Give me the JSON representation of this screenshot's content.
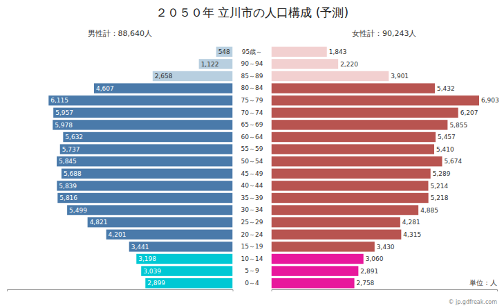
{
  "chart_data": {
    "type": "bar",
    "orientation": "horizontal",
    "title": "２０５０年 立川市の人口構成 (予測)",
    "annotations": [
      "男性計：88,640人",
      "女性計：90,243人",
      "単位：人",
      "© jp.gdfreak.com"
    ],
    "categories": [
      "95歳～",
      "90～94",
      "85～89",
      "80～84",
      "75～79",
      "70～74",
      "65～69",
      "60～64",
      "55～59",
      "50～54",
      "45～49",
      "40～44",
      "35～39",
      "30～34",
      "25～29",
      "20～24",
      "15～19",
      "10～14",
      "5～9",
      "0～4"
    ],
    "series": [
      {
        "values": [
          548,
          1122,
          2658,
          4607,
          6115,
          5957,
          5978,
          5632,
          5737,
          5845,
          5688,
          5839,
          5816,
          5499,
          4821,
          4201,
          3441,
          3198,
          3039,
          2899
        ],
        "value_labels": [
          "548",
          "1,122",
          "2,658",
          "4,607",
          "6,115",
          "5,957",
          "5,978",
          "5,632",
          "5,737",
          "5,845",
          "5,688",
          "5,839",
          "5,816",
          "5,499",
          "4,821",
          "4,201",
          "3,441",
          "3,198",
          "3,039",
          "2,899"
        ],
        "colors": [
          "#b8cfe0",
          "#b8cfe0",
          "#b8cfe0",
          "#4a7aaa",
          "#4a7aaa",
          "#4a7aaa",
          "#4a7aaa",
          "#4a7aaa",
          "#4a7aaa",
          "#4a7aaa",
          "#4a7aaa",
          "#4a7aaa",
          "#4a7aaa",
          "#4a7aaa",
          "#4a7aaa",
          "#4a7aaa",
          "#4a7aaa",
          "#00c8d4",
          "#00c8d4",
          "#00c8d4"
        ]
      },
      {
        "values": [
          1843,
          2220,
          3901,
          5432,
          6903,
          6207,
          5855,
          5457,
          5410,
          5674,
          5289,
          5214,
          5218,
          4885,
          4281,
          4315,
          3430,
          3060,
          2891,
          2758
        ],
        "value_labels": [
          "1,843",
          "2,220",
          "3,901",
          "5,432",
          "6,903",
          "6,207",
          "5,855",
          "5,457",
          "5,410",
          "5,674",
          "5,289",
          "5,214",
          "5,218",
          "4,885",
          "4,281",
          "4,315",
          "3,430",
          "3,060",
          "2,891",
          "2,758"
        ],
        "colors": [
          "#f2d0d0",
          "#f2d0d0",
          "#f2d0d0",
          "#b85450",
          "#b85450",
          "#b85450",
          "#b85450",
          "#b85450",
          "#b85450",
          "#b85450",
          "#b85450",
          "#b85450",
          "#b85450",
          "#b85450",
          "#b85450",
          "#b85450",
          "#b85450",
          "#e8189c",
          "#e8189c",
          "#e8189c"
        ]
      }
    ],
    "xlim": [
      0,
      7500
    ],
    "data_labels": true,
    "tick_labels": "y"
  }
}
